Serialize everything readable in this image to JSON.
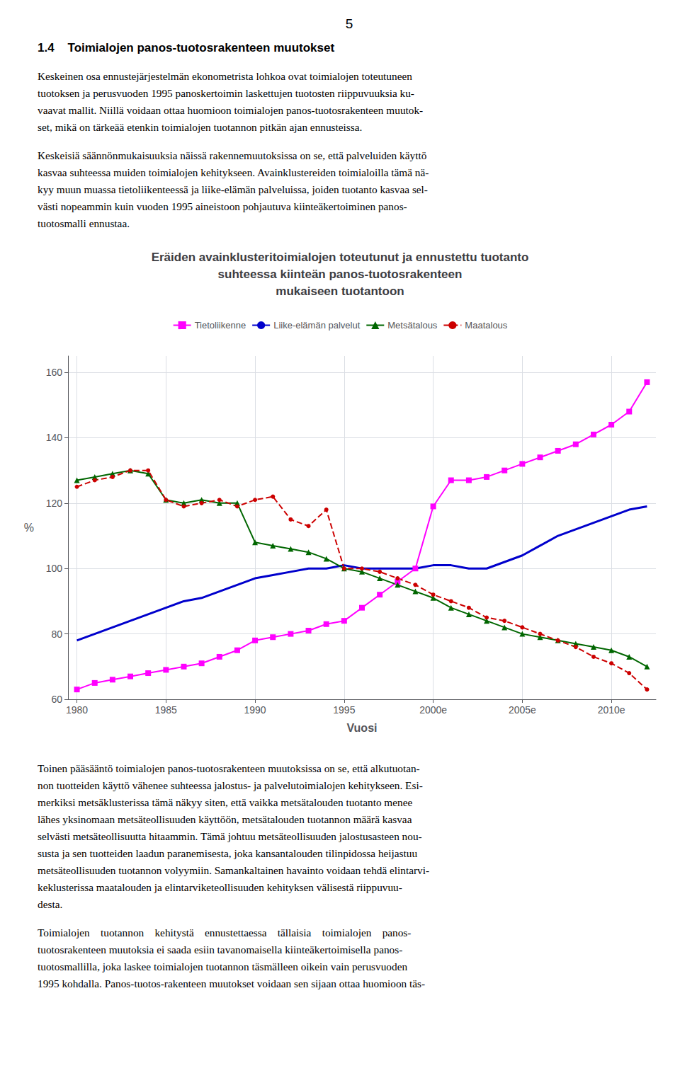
{
  "page_number": "5",
  "section_title": "1.4    Toimialojen panos-tuotosrakenteen muutokset",
  "paragraphs_before": [
    [
      "Keskeinen osa ennustejärjestelmän ekonometrista lohkoa ovat toimialojen toteutuneen",
      "tuotoksen ja perusvuoden 1995 panoskertoimin laskettujen tuotosten riippuvuuksia ku-",
      "vaavat mallit. Niillä voidaan ottaa huomioon toimialojen panos-tuotosrakenteen muutok-",
      "set, mikä on tärkeää etenkin toimialojen tuotannon pitkän ajan ennusteissa."
    ],
    [
      "Keskeisiä säännönmukaisuuksia näissä rakennemuutoksissa on se, että palveluiden käyttö",
      "kasvaa suhteessa muiden toimialojen kehitykseen. Avainklustereiden toimialoilla tämä nä-",
      "kyy muun muassa tietoliikenteessä ja liike-elämän palveluissa, joiden tuotanto kasvaa sel-",
      "västi nopeammin kuin vuoden 1995 aineistoon pohjautuva kiinteäkertoiminen panos-",
      "tuotosmalli ennustaa."
    ]
  ],
  "paragraphs_after": [
    [
      "Toinen pääsääntö toimialojen panos-tuotosrakenteen muutoksissa on se, että alkutuotan-",
      "non tuotteiden käyttö vähenee suhteessa jalostus- ja palvelutoimialojen kehitykseen. Esi-",
      "merkiksi metsäklusterissa tämä näkyy siten, että vaikka metsätalouden tuotanto menee",
      "lähes yksinomaan metsäteollisuuden käyttöön, metsätalouden tuotannon määrä kasvaa",
      "selvästi metsäteollisuutta hitaammin. Tämä johtuu metsäteollisuuden jalostusasteen nou-",
      "susta ja sen tuotteiden laadun paranemisesta, joka kansantalouden tilinpidossa heijastuu",
      "metsäteollisuuden tuotannon volyymiin. Samankaltainen havainto voidaan tehdä elintarvi-",
      "keklusterissa maatalouden ja elintarviketeollisuuden kehityksen välisestä riippuvuu-",
      "desta."
    ],
    [
      "Toimialojen    tuotannon    kehitystä    ennustettaessa    tällaisia    toimialojen    panos-",
      "tuotosrakenteen muutoksia ei saada esiin tavanomaisella kiinteäkertoimisella panos-",
      "tuotosmallilla, joka laskee toimialojen tuotannon täsmälleen oikein vain perusvuoden",
      "1995 kohdalla. Panos-tuotos-rakenteen muutokset voidaan sen sijaan ottaa huomioon täs-"
    ]
  ],
  "chart_data": {
    "type": "line",
    "title": "Eräiden avainklusteritoimialojen toteutunut ja ennustettu tuotanto\nsuhteessa kiinteän panos-tuotosrakenteen\nmukaiseen tuotantoon",
    "xlabel": "Vuosi",
    "ylabel": "%",
    "x": [
      1980,
      1981,
      1982,
      1983,
      1984,
      1985,
      1986,
      1987,
      1988,
      1989,
      1990,
      1991,
      1992,
      1993,
      1994,
      1995,
      1996,
      1997,
      1998,
      1999,
      2000,
      2001,
      2002,
      2003,
      2004,
      2005,
      2006,
      2007,
      2008,
      2009,
      2010,
      2011,
      2012
    ],
    "xlim": [
      1979.5,
      2012.5
    ],
    "xticks": [
      1980,
      1985,
      1990,
      1995,
      {
        "value": 2000,
        "label": "2000e"
      },
      {
        "value": 2005,
        "label": "2005e"
      },
      {
        "value": 2010,
        "label": "2010e"
      }
    ],
    "ylim": [
      60,
      165
    ],
    "yticks": [
      60,
      80,
      100,
      120,
      140,
      160
    ],
    "grid": true,
    "legend": "top",
    "series": [
      {
        "name": "Tietoliikenne",
        "color": "#FF00FF",
        "marker": "square",
        "line_style": "solid",
        "values": [
          63,
          65,
          66,
          67,
          68,
          69,
          70,
          71,
          73,
          75,
          78,
          79,
          80,
          81,
          83,
          84,
          88,
          92,
          96,
          100,
          119,
          127,
          127,
          128,
          130,
          132,
          134,
          136,
          138,
          141,
          144,
          148,
          157
        ]
      },
      {
        "name": "Liike-elämän palvelut",
        "color": "#0000CC",
        "marker": "none",
        "line_style": "solid",
        "values": [
          78,
          80,
          82,
          84,
          86,
          88,
          90,
          91,
          93,
          95,
          97,
          98,
          99,
          100,
          100,
          101,
          100,
          100,
          100,
          100,
          101,
          101,
          100,
          100,
          102,
          104,
          107,
          110,
          112,
          114,
          116,
          118,
          119
        ]
      },
      {
        "name": "Metsätalous",
        "color": "#006600",
        "marker": "triangle",
        "line_style": "solid",
        "values": [
          127,
          128,
          129,
          130,
          129,
          121,
          120,
          121,
          120,
          120,
          108,
          107,
          106,
          105,
          103,
          100,
          99,
          97,
          95,
          93,
          91,
          88,
          86,
          84,
          82,
          80,
          79,
          78,
          77,
          76,
          75,
          73,
          70
        ]
      },
      {
        "name": "Maatalous",
        "color": "#CC0000",
        "marker": "circle",
        "line_style": "dashed",
        "values": [
          125,
          127,
          128,
          130,
          130,
          121,
          119,
          120,
          121,
          119,
          121,
          122,
          115,
          113,
          118,
          100,
          100,
          99,
          97,
          95,
          92,
          90,
          88,
          85,
          84,
          82,
          80,
          78,
          76,
          73,
          71,
          68,
          63
        ]
      }
    ]
  }
}
